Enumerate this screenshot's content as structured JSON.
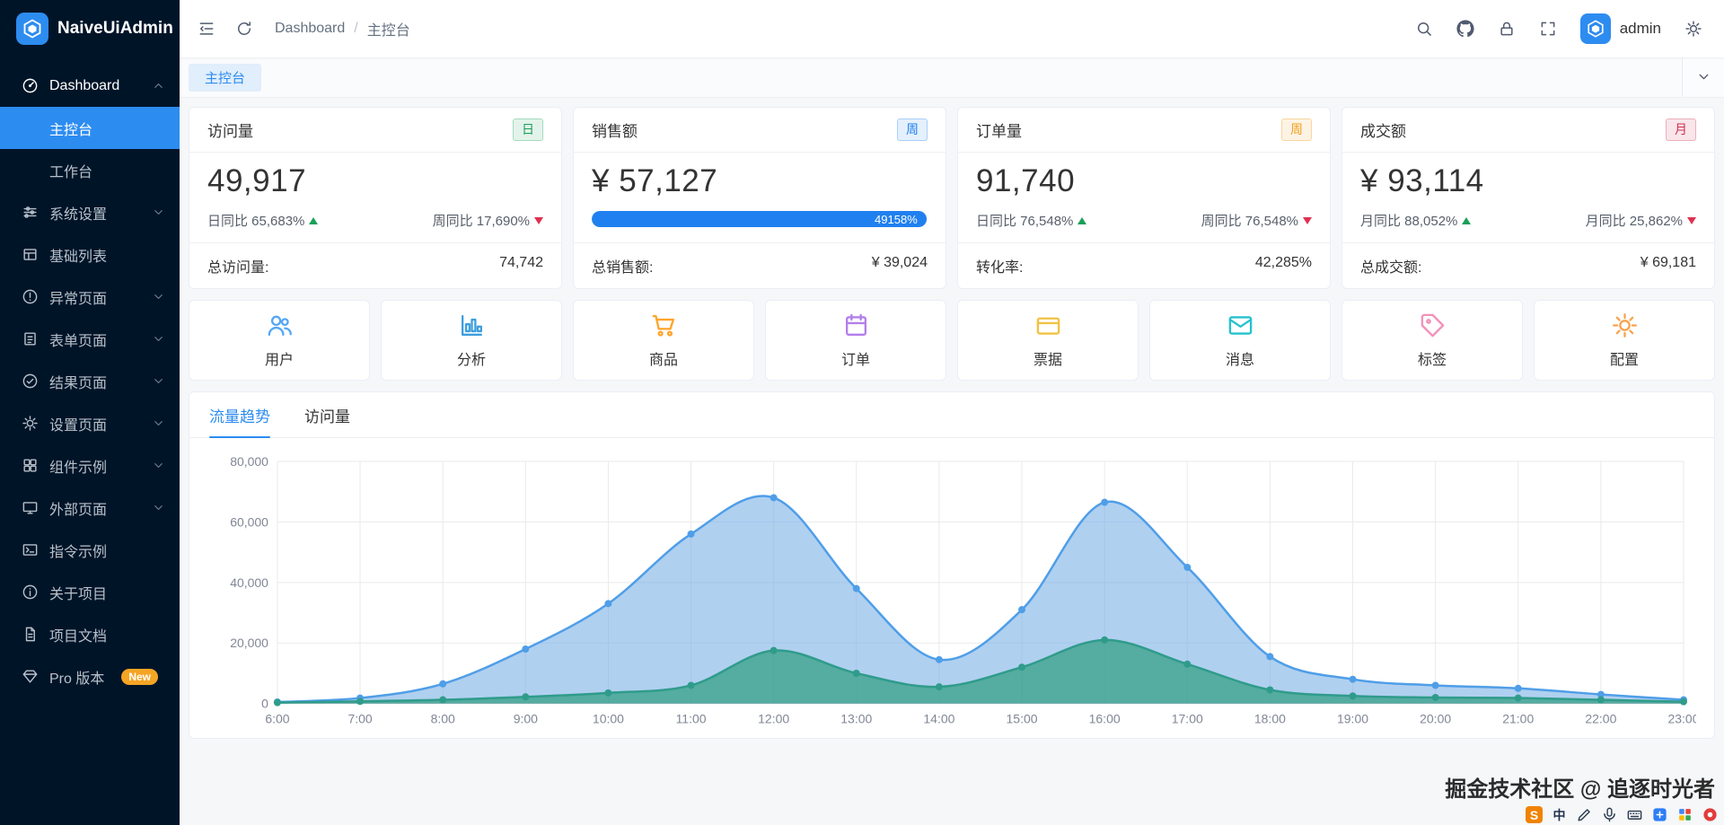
{
  "app": {
    "name": "NaiveUiAdmin"
  },
  "colors": {
    "accent": "#2d8cf0",
    "sidebar_bg": "#001428",
    "success": "#18a058",
    "error": "#e03050",
    "warning": "#f0a020",
    "progress_blue": "#2080f0",
    "new_badge": "#f5a524"
  },
  "sidebar": {
    "menu": [
      {
        "id": "dashboard",
        "label": "Dashboard",
        "icon": "dashboard-icon",
        "chevron": "up",
        "selected": true,
        "children": [
          {
            "id": "console",
            "label": "主控台",
            "active": true
          },
          {
            "id": "workplace",
            "label": "工作台",
            "active": false
          }
        ]
      },
      {
        "id": "system-settings",
        "label": "系统设置",
        "icon": "sliders-icon",
        "chevron": "down"
      },
      {
        "id": "basic-list",
        "label": "基础列表",
        "icon": "table-icon",
        "chevron": null
      },
      {
        "id": "exception-pages",
        "label": "异常页面",
        "icon": "warning-icon",
        "chevron": "down"
      },
      {
        "id": "form-pages",
        "label": "表单页面",
        "icon": "form-icon",
        "chevron": "down"
      },
      {
        "id": "result-pages",
        "label": "结果页面",
        "icon": "check-circle-icon",
        "chevron": "down"
      },
      {
        "id": "setting-pages",
        "label": "设置页面",
        "icon": "gear-icon",
        "chevron": "down"
      },
      {
        "id": "component-examples",
        "label": "组件示例",
        "icon": "component-icon",
        "chevron": "down"
      },
      {
        "id": "external-pages",
        "label": "外部页面",
        "icon": "monitor-icon",
        "chevron": "down"
      },
      {
        "id": "directive-examples",
        "label": "指令示例",
        "icon": "terminal-icon",
        "chevron": null
      },
      {
        "id": "about-project",
        "label": "关于项目",
        "icon": "info-icon",
        "chevron": null
      },
      {
        "id": "project-docs",
        "label": "项目文档",
        "icon": "document-icon",
        "chevron": null
      },
      {
        "id": "pro-version",
        "label": "Pro 版本",
        "icon": "gem-icon",
        "chevron": null,
        "badge": "New"
      }
    ]
  },
  "header": {
    "left_icons": [
      "menu-fold-icon",
      "refresh-icon"
    ],
    "breadcrumb": [
      {
        "label": "Dashboard"
      },
      {
        "label": "主控台"
      }
    ],
    "right_icons": [
      "search-icon",
      "github-icon",
      "lock-icon",
      "fullscreen-icon"
    ],
    "username": "admin",
    "settings_icon": "gear-icon"
  },
  "tabbar": {
    "tabs": [
      {
        "label": "主控台",
        "active": true
      }
    ],
    "menu_icon": "chevron-down-icon"
  },
  "stats": [
    {
      "title": "访问量",
      "badge": {
        "text": "日",
        "color": "green"
      },
      "value": "49,917",
      "compares": [
        {
          "label": "日同比",
          "value": "65,683%",
          "trend": "up"
        },
        {
          "label": "周同比",
          "value": "17,690%",
          "trend": "down"
        }
      ],
      "footer": {
        "label": "总访问量:",
        "value": "74,742"
      }
    },
    {
      "title": "销售额",
      "badge": {
        "text": "周",
        "color": "blue"
      },
      "value": "¥ 57,127",
      "progress": {
        "percent": 97,
        "label": "49158%"
      },
      "footer": {
        "label": "总销售额:",
        "value": "¥ 39,024"
      }
    },
    {
      "title": "订单量",
      "badge": {
        "text": "周",
        "color": "orange"
      },
      "value": "91,740",
      "compares": [
        {
          "label": "日同比",
          "value": "76,548%",
          "trend": "up"
        },
        {
          "label": "周同比",
          "value": "76,548%",
          "trend": "down"
        }
      ],
      "footer": {
        "label": "转化率:",
        "value": "42,285%"
      }
    },
    {
      "title": "成交额",
      "badge": {
        "text": "月",
        "color": "red"
      },
      "value": "¥ 93,114",
      "compares": [
        {
          "label": "月同比",
          "value": "88,052%",
          "trend": "up"
        },
        {
          "label": "月同比",
          "value": "25,862%",
          "trend": "down"
        }
      ],
      "footer": {
        "label": "总成交额:",
        "value": "¥ 69,181"
      }
    }
  ],
  "quick_actions": [
    {
      "label": "用户",
      "icon": "users-icon",
      "color": "#55a6f5"
    },
    {
      "label": "分析",
      "icon": "chart-icon",
      "color": "#3e9fdc"
    },
    {
      "label": "商品",
      "icon": "cart-icon",
      "color": "#ffa42b"
    },
    {
      "label": "订单",
      "icon": "calendar-icon",
      "color": "#b37feb"
    },
    {
      "label": "票据",
      "icon": "card-icon",
      "color": "#f1c242"
    },
    {
      "label": "消息",
      "icon": "mail-icon",
      "color": "#25c2ce"
    },
    {
      "label": "标签",
      "icon": "tag-icon",
      "color": "#f291b9"
    },
    {
      "label": "配置",
      "icon": "gear-icon",
      "color": "#f7a34f"
    }
  ],
  "chart_card": {
    "tabs": [
      {
        "label": "流量趋势",
        "active": true
      },
      {
        "label": "访问量",
        "active": false
      }
    ]
  },
  "chart_data": {
    "type": "area",
    "title": "流量趋势",
    "x": [
      "6:00",
      "7:00",
      "8:00",
      "9:00",
      "10:00",
      "11:00",
      "12:00",
      "13:00",
      "14:00",
      "15:00",
      "16:00",
      "17:00",
      "18:00",
      "19:00",
      "20:00",
      "21:00",
      "22:00",
      "23:00"
    ],
    "series": [
      {
        "name": "series-blue",
        "color": "#4f9ee8",
        "fill": "rgba(111,170,227,0.55)",
        "values": [
          500,
          1800,
          6500,
          18000,
          33000,
          56000,
          68000,
          38000,
          14500,
          31000,
          66500,
          45000,
          15500,
          8000,
          6000,
          5000,
          3000,
          1200
        ]
      },
      {
        "name": "series-green",
        "color": "#2f9c8b",
        "fill": "rgba(47,156,125,0.7)",
        "values": [
          300,
          700,
          1200,
          2200,
          3500,
          6000,
          17500,
          10000,
          5500,
          12000,
          21000,
          13000,
          4500,
          2500,
          2000,
          1800,
          1200,
          600
        ]
      }
    ],
    "ylim": [
      0,
      80000
    ],
    "yticks": [
      0,
      20000,
      40000,
      60000,
      80000
    ],
    "ytick_labels": [
      "0",
      "20,000",
      "40,000",
      "60,000",
      "80,000"
    ],
    "xlabel": "",
    "ylabel": "",
    "grid": true,
    "smooth": true,
    "legend": null
  },
  "watermark": {
    "text": "掘金技术社区 @ 追逐时光者"
  },
  "tray": {
    "items": [
      {
        "name": "sogou-input-icon",
        "glyph": "S",
        "fg": "#ffffff",
        "bg": "#f08300"
      },
      {
        "name": "chinese-mode-icon",
        "glyph": "中",
        "fg": "#1f2f4a",
        "bg": ""
      },
      {
        "name": "handwriting-pen-icon",
        "icon": "pen-icon"
      },
      {
        "name": "mic-icon",
        "icon": "mic-icon"
      },
      {
        "name": "keyboard-icon",
        "icon": "keyboard-icon"
      },
      {
        "name": "blue-app-icon",
        "icon": "blue-app-icon"
      },
      {
        "name": "color-grid-icon",
        "icon": "color-grid-icon"
      },
      {
        "name": "notification-badge-icon",
        "icon": "red-badge-icon"
      }
    ]
  }
}
